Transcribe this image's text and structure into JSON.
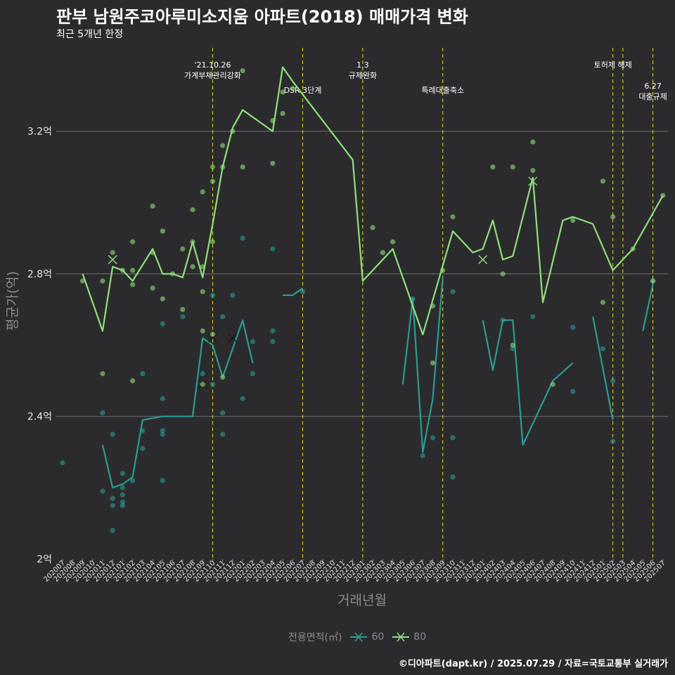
{
  "title": "판부 남원주코아루미소지움 아파트(2018) 매매가격 변화",
  "subtitle": "최근 5개년 한정",
  "caption": "©디아파트(dapt.kr) / 2025.07.29 / 자료=국토교통부 실거래가",
  "legend": {
    "title": "전용면적(㎡)",
    "items": [
      {
        "label": "60",
        "color": "#2a9c92"
      },
      {
        "label": "80",
        "color": "#8fe07a"
      }
    ]
  },
  "chart_data": {
    "type": "line",
    "xlabel": "거래년월",
    "ylabel": "평균가(억)",
    "ylim": [
      2.0,
      3.45
    ],
    "yticks": [
      {
        "value": 2.0,
        "label": "2억"
      },
      {
        "value": 2.4,
        "label": "2.4억"
      },
      {
        "value": 2.8,
        "label": "2.8억"
      },
      {
        "value": 3.2,
        "label": "3.2억"
      }
    ],
    "grid": true,
    "x_categories": [
      "202007",
      "202008",
      "202009",
      "202010",
      "202011",
      "202012",
      "202101",
      "202102",
      "202103",
      "202104",
      "202105",
      "202106",
      "202107",
      "202108",
      "202109",
      "202110",
      "202111",
      "202112",
      "202201",
      "202202",
      "202203",
      "202204",
      "202205",
      "202206",
      "202207",
      "202208",
      "202209",
      "202210",
      "202211",
      "202212",
      "202301",
      "202302",
      "202303",
      "202304",
      "202305",
      "202306",
      "202307",
      "202308",
      "202309",
      "202310",
      "202311",
      "202312",
      "202401",
      "202402",
      "202403",
      "202404",
      "202405",
      "202406",
      "202407",
      "202408",
      "202409",
      "202410",
      "202411",
      "202412",
      "202501",
      "202502",
      "202503",
      "202504",
      "202505",
      "202506",
      "202507"
    ],
    "series": [
      {
        "name": "60",
        "color": "#2a9c92",
        "segments": [
          [
            [
              "202011",
              2.32
            ],
            [
              "202012",
              2.2
            ],
            [
              "202101",
              2.21
            ],
            [
              "202102",
              2.23
            ],
            [
              "202103",
              2.39
            ],
            [
              "202105",
              2.4
            ],
            [
              "202108",
              2.4
            ],
            [
              "202109",
              2.62
            ],
            [
              "202110",
              2.6
            ],
            [
              "202111",
              2.51
            ],
            [
              "202201",
              2.67
            ],
            [
              "202202",
              2.55
            ]
          ],
          [
            [
              "202205",
              2.74
            ],
            [
              "202206",
              2.74
            ],
            [
              "202207",
              2.76
            ]
          ],
          [
            [
              "202305",
              2.49
            ],
            [
              "202306",
              2.73
            ],
            [
              "202307",
              2.3
            ],
            [
              "202308",
              2.45
            ],
            [
              "202309",
              2.79
            ]
          ],
          [
            [
              "202401",
              2.67
            ],
            [
              "202402",
              2.53
            ],
            [
              "202403",
              2.67
            ],
            [
              "202404",
              2.67
            ],
            [
              "202405",
              2.32
            ],
            [
              "202408",
              2.5
            ],
            [
              "202410",
              2.55
            ]
          ],
          [
            [
              "202412",
              2.68
            ],
            [
              "202502",
              2.39
            ]
          ],
          [
            [
              "202505",
              2.64
            ],
            [
              "202506",
              2.77
            ]
          ]
        ],
        "points": [
          [
            "202007",
            2.27
          ],
          [
            "202011",
            2.41
          ],
          [
            "202011",
            2.19
          ],
          [
            "202012",
            2.35
          ],
          [
            "202012",
            2.17
          ],
          [
            "202012",
            2.15
          ],
          [
            "202012",
            2.08
          ],
          [
            "202101",
            2.24
          ],
          [
            "202101",
            2.2
          ],
          [
            "202101",
            2.18
          ],
          [
            "202101",
            2.16
          ],
          [
            "202101",
            2.15
          ],
          [
            "202102",
            2.22
          ],
          [
            "202103",
            2.31
          ],
          [
            "202103",
            2.36
          ],
          [
            "202103",
            2.52
          ],
          [
            "202105",
            2.36
          ],
          [
            "202105",
            2.35
          ],
          [
            "202105",
            2.22
          ],
          [
            "202105",
            2.45
          ],
          [
            "202105",
            2.66
          ],
          [
            "202107",
            2.68
          ],
          [
            "202109",
            2.52
          ],
          [
            "202110",
            2.49
          ],
          [
            "202110",
            2.74
          ],
          [
            "202111",
            2.68
          ],
          [
            "202111",
            2.41
          ],
          [
            "202111",
            2.35
          ],
          [
            "202112",
            2.74
          ],
          [
            "202201",
            2.45
          ],
          [
            "202201",
            2.9
          ],
          [
            "202202",
            2.52
          ],
          [
            "202202",
            2.61
          ],
          [
            "202204",
            2.61
          ],
          [
            "202204",
            2.64
          ],
          [
            "202204",
            2.87
          ],
          [
            "202207",
            2.75
          ],
          [
            "202306",
            2.73
          ],
          [
            "202307",
            2.29
          ],
          [
            "202308",
            2.34
          ],
          [
            "202310",
            2.34
          ],
          [
            "202310",
            2.23
          ],
          [
            "202310",
            2.75
          ],
          [
            "202403",
            2.67
          ],
          [
            "202404",
            2.59
          ],
          [
            "202406",
            2.68
          ],
          [
            "202410",
            2.47
          ],
          [
            "202410",
            2.65
          ],
          [
            "202501",
            2.59
          ],
          [
            "202502",
            2.33
          ],
          [
            "202502",
            2.5
          ],
          [
            "202506",
            2.78
          ]
        ],
        "x_marks": [
          [
            "202109",
            2.49
          ],
          [
            "202110",
            2.62
          ],
          [
            "202112",
            2.62
          ]
        ]
      },
      {
        "name": "80",
        "color": "#8fe07a",
        "segments": [
          [
            [
              "202009",
              2.8
            ],
            [
              "202011",
              2.64
            ],
            [
              "202012",
              2.82
            ],
            [
              "202101",
              2.81
            ],
            [
              "202102",
              2.78
            ],
            [
              "202104",
              2.87
            ],
            [
              "202105",
              2.8
            ],
            [
              "202106",
              2.8
            ],
            [
              "202107",
              2.79
            ],
            [
              "202108",
              2.89
            ],
            [
              "202109",
              2.79
            ],
            [
              "202110",
              2.94
            ],
            [
              "202111",
              3.1
            ],
            [
              "202112",
              3.21
            ],
            [
              "202201",
              3.26
            ],
            [
              "202204",
              3.2
            ],
            [
              "202205",
              3.38
            ],
            [
              "202206",
              3.34
            ],
            [
              "202212",
              3.12
            ],
            [
              "202301",
              2.78
            ],
            [
              "202304",
              2.87
            ],
            [
              "202307",
              2.63
            ],
            [
              "202310",
              2.92
            ],
            [
              "202312",
              2.86
            ],
            [
              "202401",
              2.87
            ],
            [
              "202402",
              2.95
            ],
            [
              "202403",
              2.84
            ],
            [
              "202404",
              2.85
            ],
            [
              "202406",
              3.07
            ],
            [
              "202407",
              2.72
            ],
            [
              "202409",
              2.95
            ],
            [
              "202410",
              2.96
            ],
            [
              "202412",
              2.94
            ],
            [
              "202502",
              2.81
            ],
            [
              "202504",
              2.87
            ],
            [
              "202507",
              3.02
            ]
          ]
        ],
        "points": [
          [
            "202009",
            2.78
          ],
          [
            "202011",
            2.78
          ],
          [
            "202011",
            2.52
          ],
          [
            "202012",
            2.86
          ],
          [
            "202101",
            2.81
          ],
          [
            "202102",
            2.89
          ],
          [
            "202102",
            2.81
          ],
          [
            "202102",
            2.77
          ],
          [
            "202102",
            2.5
          ],
          [
            "202104",
            2.99
          ],
          [
            "202104",
            2.86
          ],
          [
            "202104",
            2.76
          ],
          [
            "202105",
            2.92
          ],
          [
            "202105",
            2.73
          ],
          [
            "202106",
            2.8
          ],
          [
            "202107",
            2.87
          ],
          [
            "202107",
            2.7
          ],
          [
            "202108",
            2.98
          ],
          [
            "202108",
            2.89
          ],
          [
            "202108",
            2.82
          ],
          [
            "202109",
            2.82
          ],
          [
            "202109",
            2.75
          ],
          [
            "202109",
            2.49
          ],
          [
            "202109",
            2.64
          ],
          [
            "202109",
            3.03
          ],
          [
            "202110",
            3.06
          ],
          [
            "202110",
            3.1
          ],
          [
            "202110",
            2.89
          ],
          [
            "202110",
            2.63
          ],
          [
            "202111",
            3.1
          ],
          [
            "202111",
            3.16
          ],
          [
            "202111",
            2.51
          ],
          [
            "202112",
            3.2
          ],
          [
            "202201",
            3.37
          ],
          [
            "202201",
            3.1
          ],
          [
            "202204",
            3.23
          ],
          [
            "202204",
            3.11
          ],
          [
            "202205",
            3.25
          ],
          [
            "202205",
            3.31
          ],
          [
            "202206",
            3.32
          ],
          [
            "202302",
            2.93
          ],
          [
            "202303",
            2.86
          ],
          [
            "202304",
            2.89
          ],
          [
            "202308",
            2.71
          ],
          [
            "202308",
            2.55
          ],
          [
            "202309",
            2.81
          ],
          [
            "202310",
            2.96
          ],
          [
            "202402",
            3.1
          ],
          [
            "202403",
            2.8
          ],
          [
            "202404",
            3.1
          ],
          [
            "202404",
            2.6
          ],
          [
            "202406",
            3.17
          ],
          [
            "202406",
            3.09
          ],
          [
            "202408",
            2.49
          ],
          [
            "202410",
            2.95
          ],
          [
            "202501",
            2.72
          ],
          [
            "202501",
            3.06
          ],
          [
            "202502",
            2.96
          ],
          [
            "202504",
            2.87
          ],
          [
            "202506",
            2.78
          ],
          [
            "202507",
            3.02
          ]
        ],
        "x_marks": [
          [
            "202012",
            2.84
          ],
          [
            "202401",
            2.84
          ],
          [
            "202406",
            3.06
          ]
        ]
      }
    ],
    "vlines": [
      {
        "x": "202110",
        "label_lines": [
          "'21.10.26",
          "가계부채관리강화"
        ],
        "label_row": 0
      },
      {
        "x": "202207",
        "label_lines": [
          "DSR 3단계"
        ],
        "label_row": 1
      },
      {
        "x": "202301",
        "label_lines": [
          "1.3",
          "규제완화"
        ],
        "label_row": 0
      },
      {
        "x": "202309",
        "label_lines": [
          "특례대출축소"
        ],
        "label_row": 1
      },
      {
        "x": "202502",
        "label_lines": [
          "토허제 해제"
        ],
        "label_row": 0
      },
      {
        "x": "202503",
        "label_lines": [],
        "label_row": 0
      },
      {
        "x": "202506",
        "label_lines": [
          "6.27",
          "대출규제"
        ],
        "label_row": 2
      }
    ]
  }
}
